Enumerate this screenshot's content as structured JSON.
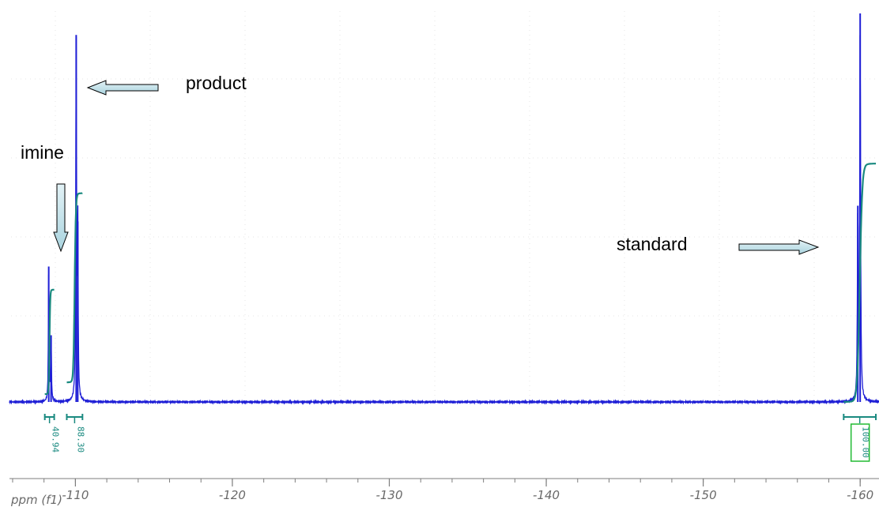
{
  "chart_data": {
    "type": "line",
    "x_axis_label": "ppm (f1)",
    "x_axis_reversed": true,
    "xlim": [
      -105.8,
      -161.2
    ],
    "x_ticks": [
      -110,
      -120,
      -130,
      -140,
      -150,
      -160
    ],
    "x_tick_labels": [
      "-110",
      "-120",
      "-130",
      "-140",
      "-150",
      "-160"
    ],
    "y_axis_shown": false,
    "grid": "faint dotted",
    "series": [
      {
        "kind": "spectrum",
        "color": "#1f1fd6",
        "baseline": 0,
        "peaks": [
          {
            "ppm": -108.3,
            "height": 0.345,
            "width": 0.05
          },
          {
            "ppm": -108.45,
            "height": 0.17,
            "width": 0.05
          },
          {
            "ppm": -110.05,
            "height": 0.935,
            "width": 0.06
          },
          {
            "ppm": -110.15,
            "height": 0.46,
            "width": 0.05
          },
          {
            "ppm": -159.85,
            "height": 0.5,
            "width": 0.06
          },
          {
            "ppm": -160.0,
            "height": 0.99,
            "width": 0.06
          }
        ]
      },
      {
        "kind": "integral",
        "color": "#1a8a80",
        "segments": [
          {
            "from": -108.05,
            "to": -108.65,
            "start": 0.02,
            "end": 0.285
          },
          {
            "from": -109.45,
            "to": -110.45,
            "start": 0.05,
            "end": 0.53
          },
          {
            "from": -158.95,
            "to": -161.0,
            "start": 0.0,
            "end": 0.605
          }
        ]
      }
    ],
    "integrals": [
      {
        "from": -108.05,
        "to": -108.65,
        "value": "40.94",
        "boxed": false
      },
      {
        "from": -109.45,
        "to": -110.45,
        "value": "88.30",
        "boxed": false
      },
      {
        "from": -158.95,
        "to": -161.0,
        "value": "100.00",
        "boxed": true
      }
    ],
    "annotations": [
      {
        "text": "imine",
        "arrow": "down",
        "target_ppm": -108.3
      },
      {
        "text": "product",
        "arrow": "left",
        "target_ppm": -110.05
      },
      {
        "text": "standard",
        "arrow": "right",
        "target_ppm": -159.9
      }
    ]
  }
}
